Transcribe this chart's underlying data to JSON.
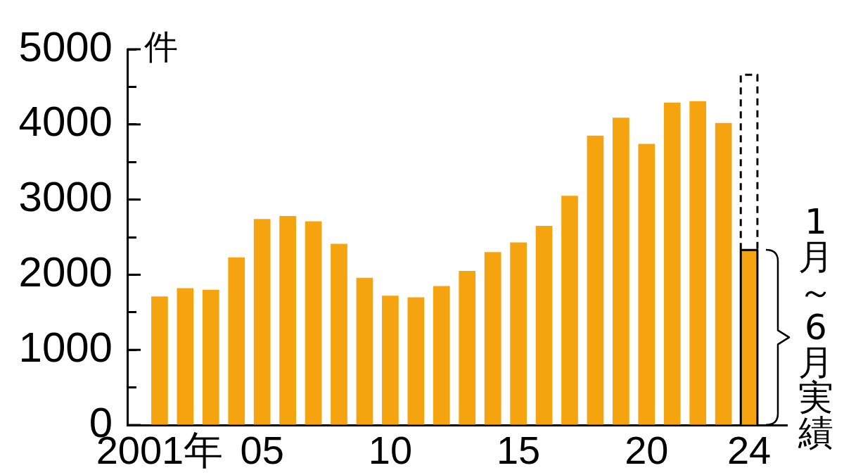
{
  "chart_data": {
    "type": "bar",
    "ylabel": "件",
    "categories": [
      "2001年",
      null,
      null,
      null,
      "05",
      null,
      null,
      null,
      null,
      "10",
      null,
      null,
      null,
      null,
      "15",
      null,
      null,
      null,
      null,
      "20",
      null,
      null,
      null,
      "24"
    ],
    "stacked": true,
    "series": [
      {
        "color": "#f5a30f",
        "values": [
          1710,
          1820,
          1800,
          2230,
          2740,
          2780,
          2710,
          2410,
          1960,
          1720,
          1700,
          1850,
          2050,
          2300,
          2430,
          2650,
          3050,
          3850,
          4090,
          3740,
          4290,
          4310,
          4020,
          null
        ]
      },
      {
        "color": "#f5a30f",
        "line_style": "solid",
        "values": [
          null,
          null,
          null,
          null,
          null,
          null,
          null,
          null,
          null,
          null,
          null,
          null,
          null,
          null,
          null,
          null,
          null,
          null,
          null,
          null,
          null,
          null,
          null,
          2330
        ]
      },
      {
        "color": "#ffffff",
        "line_style": "dashed",
        "values": [
          null,
          null,
          null,
          null,
          null,
          null,
          null,
          null,
          null,
          null,
          null,
          null,
          null,
          null,
          null,
          null,
          null,
          null,
          null,
          null,
          null,
          null,
          null,
          2330
        ]
      }
    ],
    "ylim": [
      0,
      5000
    ],
    "yticks": [
      0,
      {
        "value": 500,
        "label": null
      },
      1000,
      {
        "value": 1500,
        "label": null
      },
      2000,
      {
        "value": 2500,
        "label": null
      },
      3000,
      {
        "value": 3500,
        "label": null
      },
      4000,
      {
        "value": 4500,
        "label": null
      },
      5000
    ],
    "grid": false,
    "legend": false,
    "annotations": [
      {
        "text": "1月～6月実績",
        "x": "24",
        "y": 2330
      }
    ]
  }
}
